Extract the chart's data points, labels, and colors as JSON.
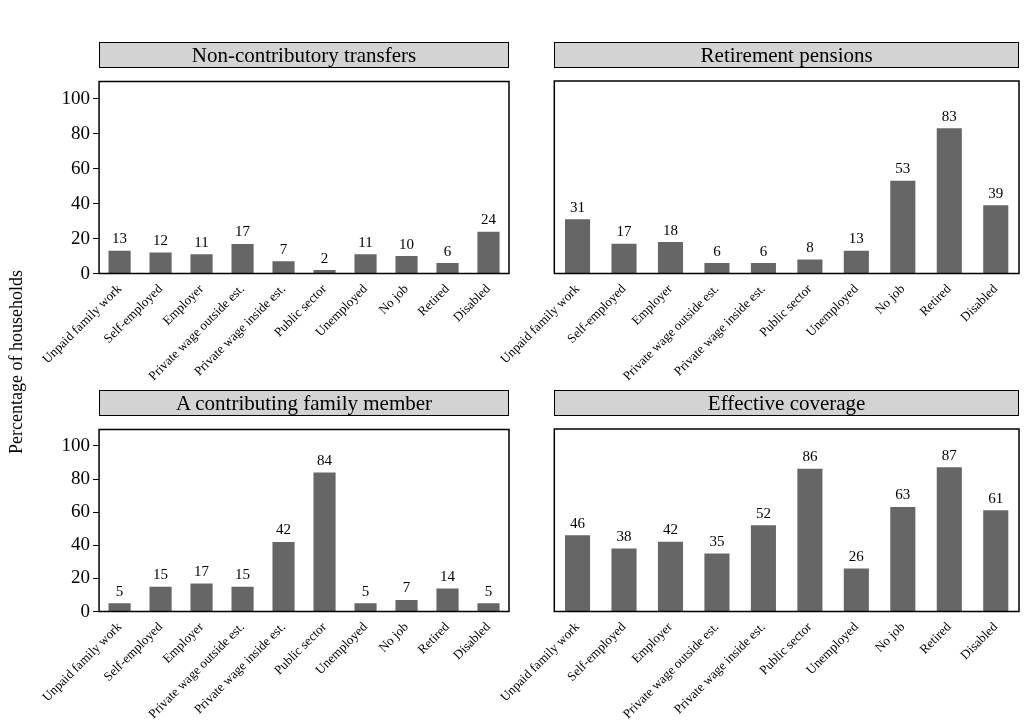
{
  "chart_data": [
    {
      "type": "bar",
      "title": "Non-contributory transfers",
      "ylabel": "Percentage of households",
      "categories": [
        "Unpaid family work",
        "Self-employed",
        "Employer",
        "Private wage outside est.",
        "Private wage inside est.",
        "Public sector",
        "Unemployed",
        "No job",
        "Retired",
        "Disabled"
      ],
      "values": [
        13,
        12,
        11,
        17,
        7,
        2,
        11,
        10,
        6,
        24
      ],
      "color": "#666666",
      "ylim": [
        0,
        110
      ],
      "yticks": [
        0,
        20,
        40,
        60,
        80,
        100
      ],
      "data_labels": true,
      "grid": false,
      "legend": false
    },
    {
      "type": "bar",
      "title": "Retirement pensions",
      "categories": [
        "Unpaid family work",
        "Self-employed",
        "Employer",
        "Private wage outside est.",
        "Private wage inside est.",
        "Public sector",
        "Unemployed",
        "No job",
        "Retired",
        "Disabled"
      ],
      "values": [
        31,
        17,
        18,
        6,
        6,
        8,
        13,
        53,
        83,
        39
      ],
      "color": "#666666",
      "ylim": [
        0,
        110
      ],
      "yticks": [
        0,
        20,
        40,
        60,
        80,
        100
      ],
      "tick_labels": "x",
      "data_labels": true,
      "grid": false,
      "legend": false
    },
    {
      "type": "bar",
      "title": "A contributing family member",
      "categories": [
        "Unpaid family work",
        "Self-employed",
        "Employer",
        "Private wage outside est.",
        "Private wage inside est.",
        "Public sector",
        "Unemployed",
        "No job",
        "Retired",
        "Disabled"
      ],
      "values": [
        5,
        15,
        17,
        15,
        42,
        84,
        5,
        7,
        14,
        5
      ],
      "color": "#666666",
      "ylim": [
        0,
        110
      ],
      "yticks": [
        0,
        20,
        40,
        60,
        80,
        100
      ],
      "data_labels": true,
      "grid": false,
      "legend": false
    },
    {
      "type": "bar",
      "title": "Effective coverage",
      "categories": [
        "Unpaid family work",
        "Self-employed",
        "Employer",
        "Private wage outside est.",
        "Private wage inside est.",
        "Public sector",
        "Unemployed",
        "No job",
        "Retired",
        "Disabled"
      ],
      "values": [
        46,
        38,
        42,
        35,
        52,
        86,
        26,
        63,
        87,
        61
      ],
      "color": "#666666",
      "ylim": [
        0,
        110
      ],
      "yticks": [
        0,
        20,
        40,
        60,
        80,
        100
      ],
      "tick_labels": "x",
      "data_labels": true,
      "grid": false,
      "legend": false
    }
  ]
}
